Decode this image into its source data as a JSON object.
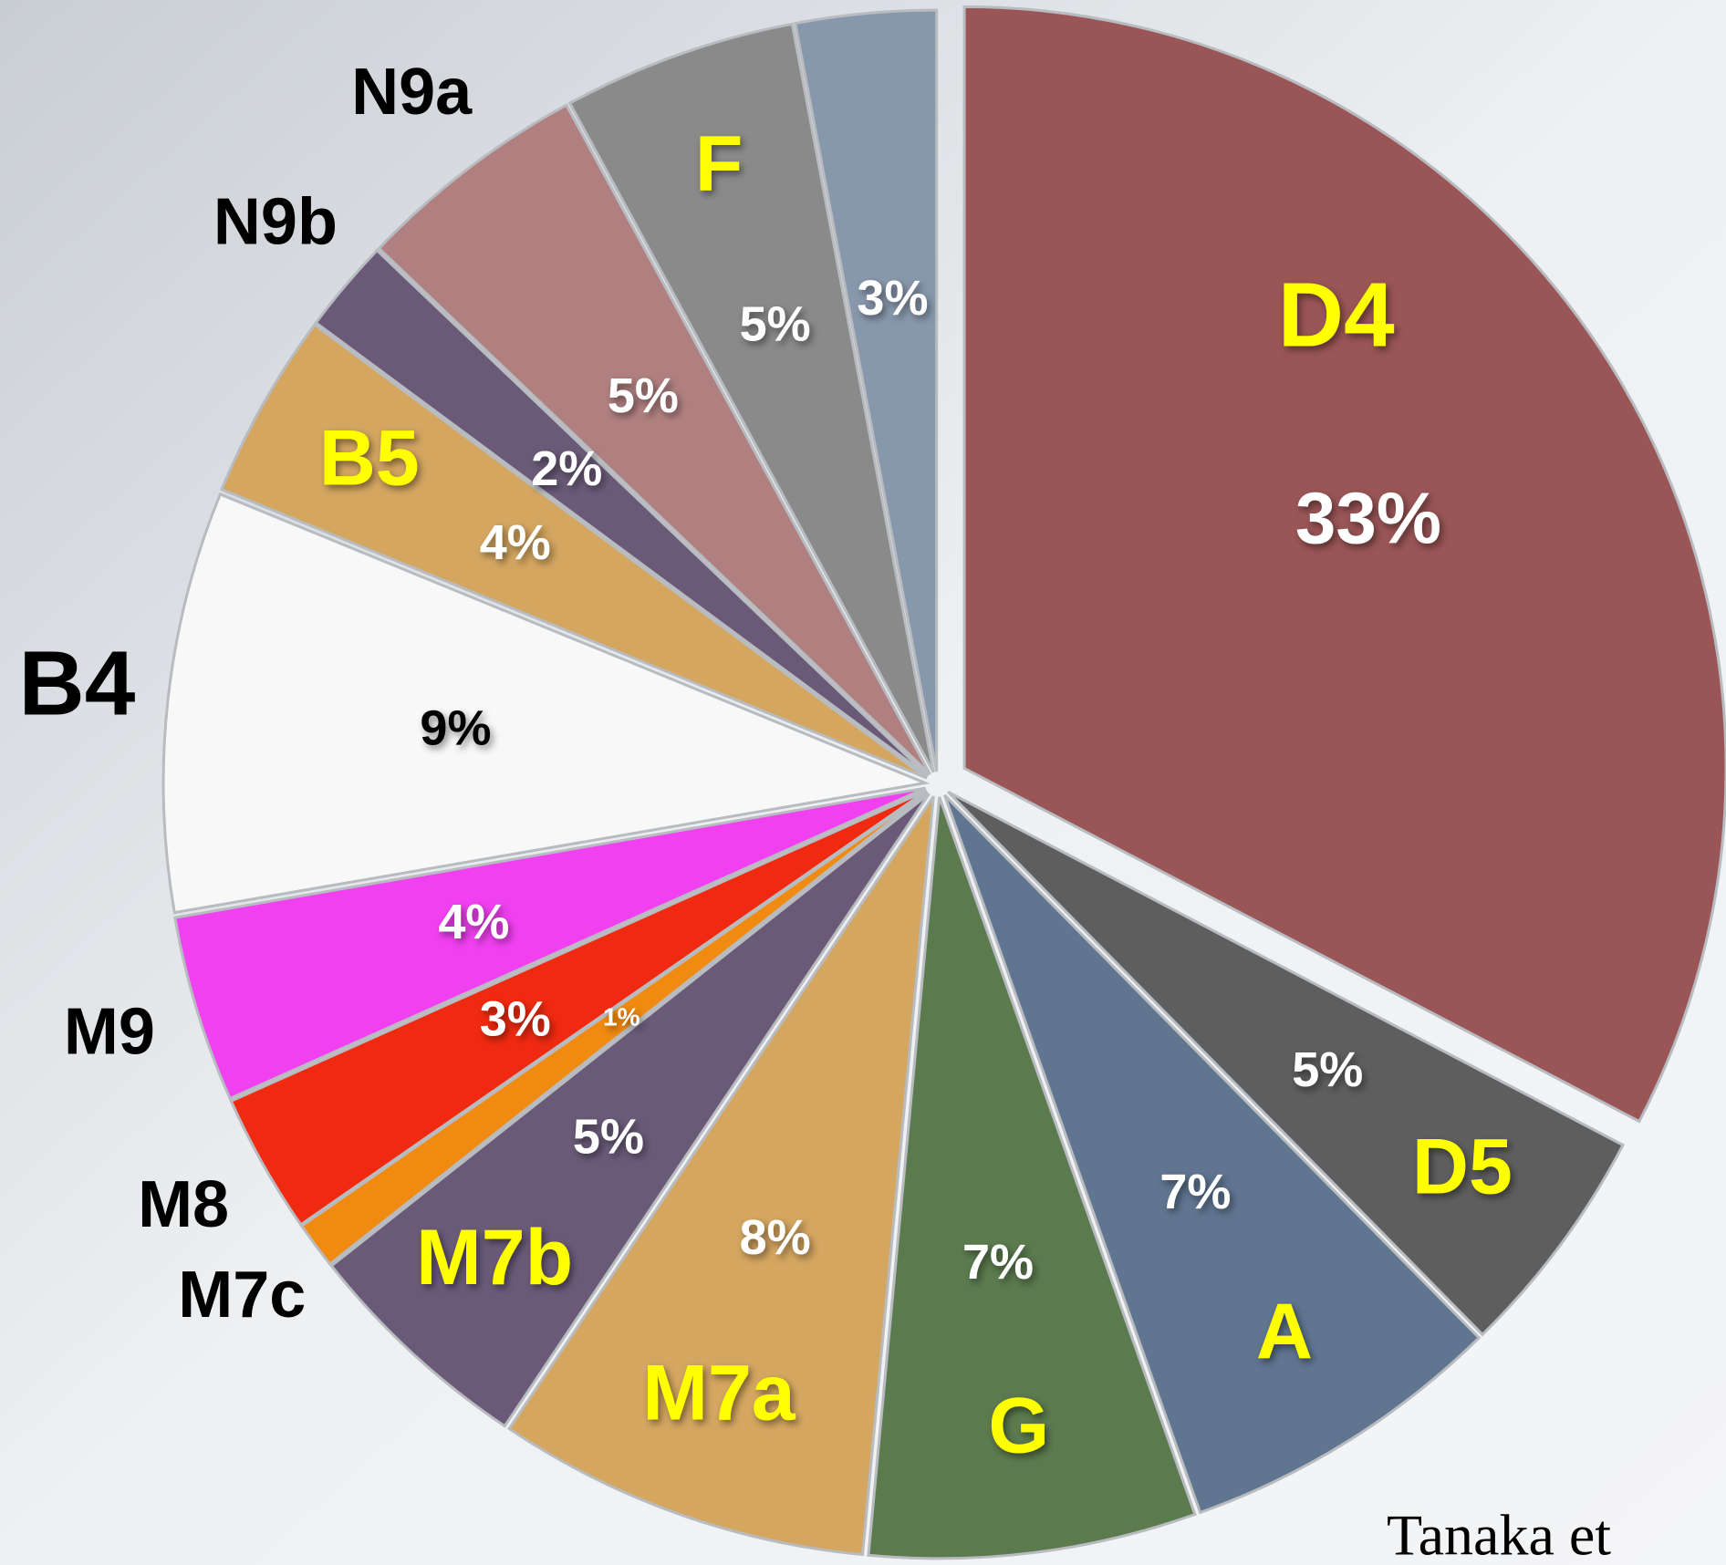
{
  "chart_data": {
    "type": "pie",
    "categories": [
      "D4",
      "D5",
      "A",
      "G",
      "M7a",
      "M7b",
      "M7c",
      "M8",
      "M9",
      "B4",
      "B5",
      "N9b",
      "N9a",
      "F",
      null
    ],
    "values": [
      33,
      5,
      7,
      7,
      8,
      5,
      1,
      3,
      4,
      9,
      4,
      2,
      5,
      5,
      3
    ],
    "value_labels": [
      "33%",
      "5%",
      "7%",
      "7%",
      "8%",
      "5%",
      "1%",
      "3%",
      "4%",
      "9%",
      "4%",
      "2%",
      "5%",
      "5%",
      "3%"
    ],
    "colors": [
      "#9a5556",
      "#5e5e5e",
      "#5f7590",
      "#5b7a4e",
      "#d4a660",
      "#6a5a78",
      "#f08a10",
      "#f02a10",
      "#f040f0",
      "#f8f8f8",
      "#d4a660",
      "#6a5a78",
      "#b08080",
      "#8a8a8a",
      "#8898ac"
    ],
    "name_colors": [
      "#ffff00",
      "#ffff00",
      "#ffff00",
      "#ffff00",
      "#ffff00",
      "#ffff00",
      "#000000",
      "#000000",
      "#000000",
      "#000000",
      "#ffff00",
      "#000000",
      "#000000",
      "#ffff00",
      null
    ],
    "annotation": "Tanaka et"
  }
}
